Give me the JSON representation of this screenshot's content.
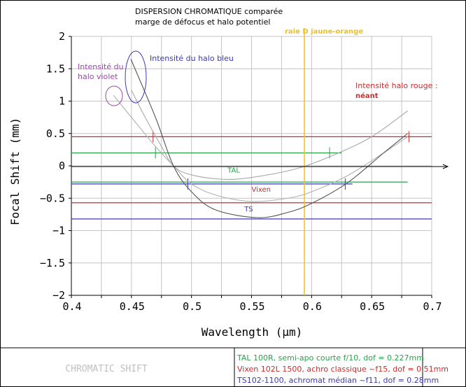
{
  "chart_data": {
    "type": "line",
    "title": "DISPERSION CHROMATIQUE comparée",
    "subtitle": "marge de défocus et halo potentiel",
    "xlabel": "Wavelength (µm)",
    "ylabel": "Focal Shift (mm)",
    "xlim": [
      0.4,
      0.7
    ],
    "ylim": [
      -2,
      2
    ],
    "xticks": [
      "0.4",
      "0.45",
      "0.5",
      "0.55",
      "0.6",
      "0.65",
      "0.7"
    ],
    "yticks": [
      "2",
      "1.5",
      "1",
      "0.5",
      "0",
      "−0.5",
      "−1",
      "−1.5",
      "−2"
    ],
    "grid": true,
    "footer_label": "CHROMATIC SHIFT",
    "series": [
      {
        "name": "TAL",
        "color": "#a8a8a8",
        "label_color": "#2aa04a",
        "points": [
          [
            0.45,
            1.17
          ],
          [
            0.46,
            0.8
          ],
          [
            0.475,
            0.3
          ],
          [
            0.485,
            0
          ],
          [
            0.5,
            -0.14
          ],
          [
            0.53,
            -0.21
          ],
          [
            0.56,
            -0.15
          ],
          [
            0.59,
            -0.03
          ],
          [
            0.62,
            0.18
          ],
          [
            0.65,
            0.45
          ],
          [
            0.68,
            0.85
          ]
        ],
        "label_at": [
          0.53,
          -0.1
        ],
        "dof_lines": [
          {
            "y": 0.2,
            "x": [
              0.4,
              0.625
            ],
            "ticks": [
              0.47,
              0.615
            ]
          },
          {
            "y": -0.25,
            "x": [
              0.4,
              0.68
            ],
            "ticks": []
          }
        ],
        "legend": "TAL 100R, semi-apo courte f/10, dof = 0.227mm"
      },
      {
        "name": "Vixen",
        "color": "#b0b0b0",
        "label_color": "#d02a2a",
        "points": [
          [
            0.435,
            1.09
          ],
          [
            0.45,
            0.75
          ],
          [
            0.47,
            0.3
          ],
          [
            0.485,
            0
          ],
          [
            0.5,
            -0.28
          ],
          [
            0.52,
            -0.45
          ],
          [
            0.55,
            -0.55
          ],
          [
            0.58,
            -0.5
          ],
          [
            0.6,
            -0.4
          ],
          [
            0.63,
            -0.15
          ],
          [
            0.66,
            0.2
          ],
          [
            0.68,
            0.45
          ]
        ],
        "label_at": [
          0.55,
          -0.4
        ],
        "dof_lines": [
          {
            "y": 0.45,
            "x": [
              0.4,
              0.7
            ],
            "ticks": [
              0.468,
              0.681
            ]
          },
          {
            "y": -0.57,
            "x": [
              0.4,
              0.7
            ],
            "ticks": []
          }
        ],
        "legend": "Vixen 102L 1500, achro classique ~f15, dof = 0.51mm"
      },
      {
        "name": "TS",
        "color": "#555555",
        "label_color": "#3a3ab0",
        "points": [
          [
            0.4495,
            1.65
          ],
          [
            0.47,
            0.75
          ],
          [
            0.485,
            0
          ],
          [
            0.5,
            -0.4
          ],
          [
            0.52,
            -0.68
          ],
          [
            0.555,
            -0.8
          ],
          [
            0.58,
            -0.72
          ],
          [
            0.6,
            -0.58
          ],
          [
            0.63,
            -0.26
          ],
          [
            0.66,
            0.2
          ],
          [
            0.68,
            0.5
          ]
        ],
        "label_at": [
          0.544,
          -0.7
        ],
        "dof_lines": [
          {
            "y": -0.28,
            "x": [
              0.4,
              0.634
            ],
            "ticks": [
              0.497,
              0.628
            ]
          },
          {
            "y": -0.82,
            "x": [
              0.4,
              0.7
            ],
            "ticks": []
          }
        ],
        "legend": "TS102-1100, achromat médian ~f11, dof = 0.28mm"
      }
    ],
    "annotations": {
      "d_line": {
        "x": 0.594,
        "label": "raie D jaune-orange",
        "color": "#f0c020"
      },
      "violet": {
        "text1": "Intensité du",
        "text2": "halo violet",
        "color": "#9a4aa8"
      },
      "blue": {
        "text": "Intensité du halo bleu",
        "color": "#3a3ab0"
      },
      "red": {
        "text1": "Intensité halo rouge :",
        "text2": "néant",
        "color": "#d02a2a"
      }
    }
  }
}
